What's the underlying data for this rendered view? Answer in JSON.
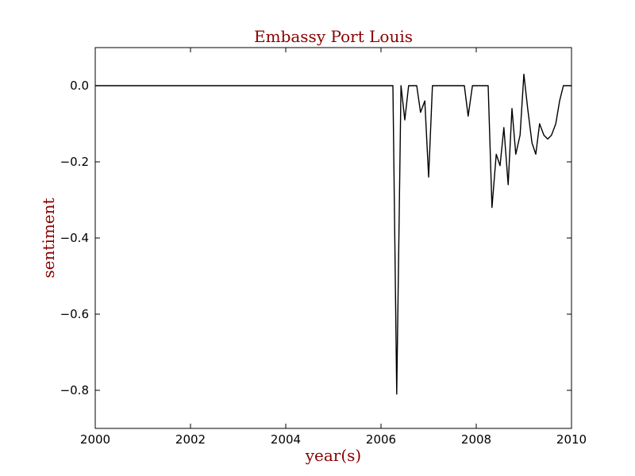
{
  "chart_data": {
    "type": "line",
    "title": "Embassy Port Louis",
    "xlabel": "year(s)",
    "ylabel": "sentiment",
    "xlim": [
      2000,
      2010
    ],
    "ylim": [
      -0.9,
      0.1
    ],
    "xticks": [
      2000,
      2002,
      2004,
      2006,
      2008,
      2010
    ],
    "xtick_labels": [
      "2000",
      "2002",
      "2004",
      "2006",
      "2008",
      "2010"
    ],
    "yticks": [
      0.0,
      -0.2,
      -0.4,
      -0.6,
      -0.8
    ],
    "ytick_labels": [
      "0.0",
      "−0.2",
      "−0.4",
      "−0.6",
      "−0.8"
    ],
    "grid": false,
    "legend": "none",
    "line_color": "#000000",
    "text_color": "#8b0000",
    "series": [
      {
        "x": [
          2000.0,
          2006.25,
          2006.33,
          2006.42,
          2006.5,
          2006.58,
          2006.67,
          2006.75,
          2006.83,
          2006.92,
          2007.0,
          2007.08,
          2007.17,
          2007.75,
          2007.83,
          2007.92,
          2008.0,
          2008.25,
          2008.33,
          2008.42,
          2008.5,
          2008.58,
          2008.67,
          2008.75,
          2008.83,
          2008.92,
          2009.0,
          2009.08,
          2009.17,
          2009.25,
          2009.33,
          2009.42,
          2009.5,
          2009.58,
          2009.67,
          2009.75,
          2009.83,
          2009.92,
          2010.0
        ],
        "y": [
          0.0,
          0.0,
          -0.81,
          0.0,
          -0.09,
          0.0,
          0.0,
          0.0,
          -0.07,
          -0.04,
          -0.24,
          0.0,
          0.0,
          0.0,
          -0.08,
          0.0,
          0.0,
          0.0,
          -0.32,
          -0.18,
          -0.21,
          -0.11,
          -0.26,
          -0.06,
          -0.18,
          -0.13,
          0.03,
          -0.06,
          -0.15,
          -0.18,
          -0.1,
          -0.13,
          -0.14,
          -0.13,
          -0.1,
          -0.04,
          0.0,
          0.0,
          0.0
        ]
      }
    ]
  }
}
